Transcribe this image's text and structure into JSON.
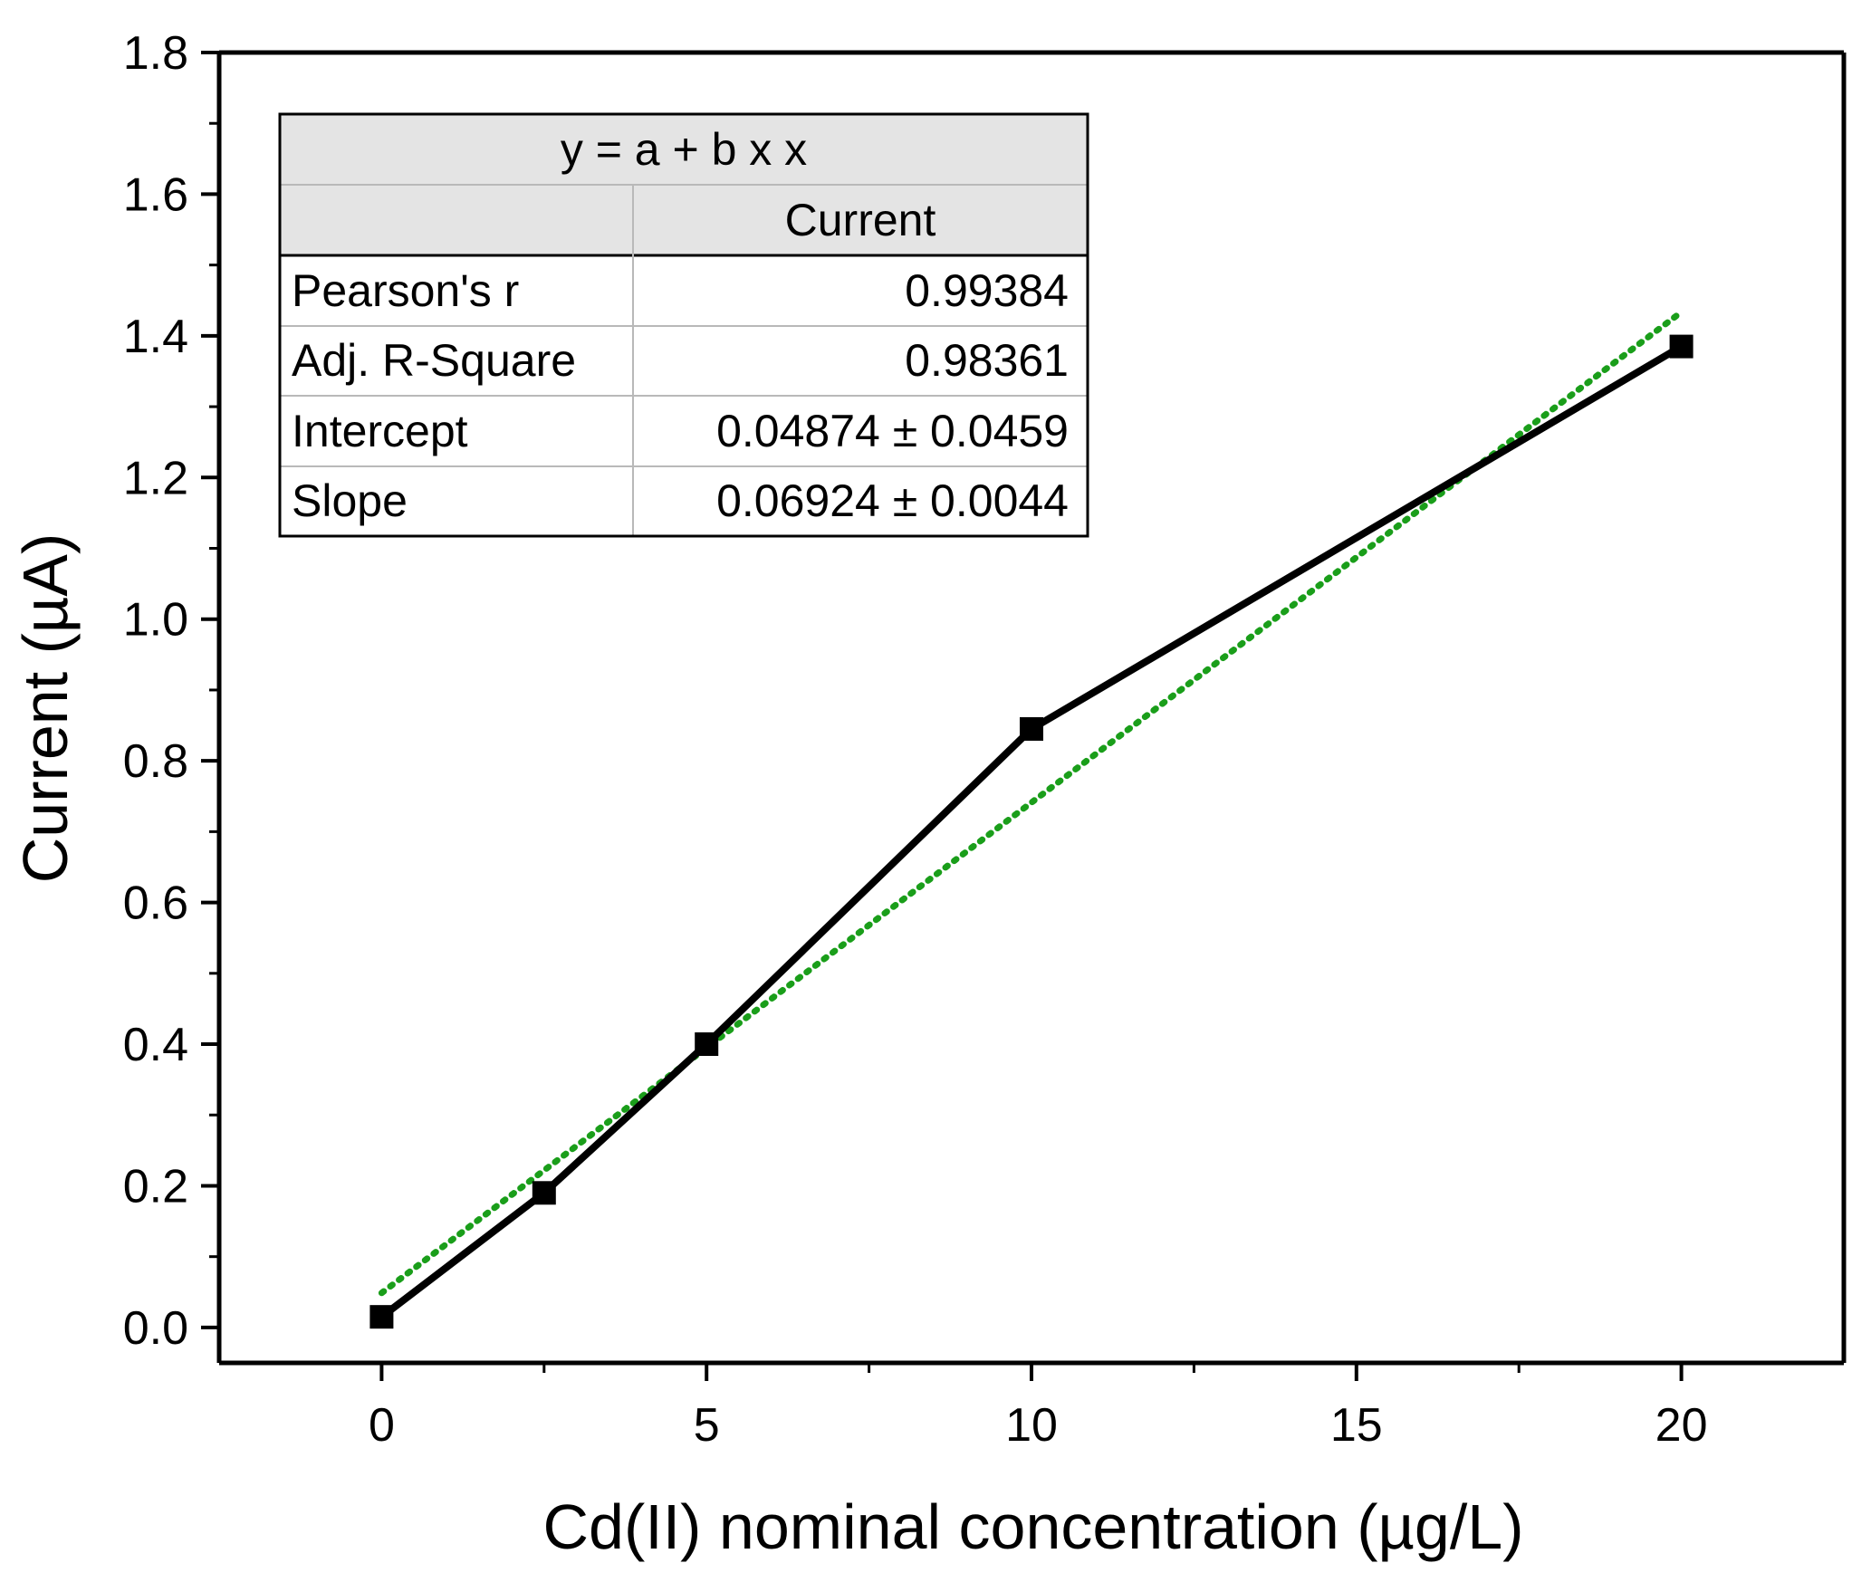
{
  "chart_data": {
    "type": "scatter",
    "xlabel": "Cd(II) nominal concentration (µg/L)",
    "ylabel": "Current (µA)",
    "xlim": [
      -2.5,
      22.5
    ],
    "ylim": [
      -0.05,
      1.8
    ],
    "x_ticks": [
      0,
      5,
      10,
      15,
      20
    ],
    "y_ticks": [
      0.0,
      0.2,
      0.4,
      0.6,
      0.8,
      1.0,
      1.2,
      1.4,
      1.6,
      1.8
    ],
    "x_tick_labels": [
      "0",
      "5",
      "10",
      "15",
      "20"
    ],
    "y_tick_labels": [
      "0.0",
      "0.2",
      "0.4",
      "0.6",
      "0.8",
      "1.0",
      "1.2",
      "1.4",
      "1.6",
      "1.8"
    ],
    "series": [
      {
        "name": "Current",
        "x": [
          0,
          2.5,
          5,
          10,
          20
        ],
        "y": [
          0.015,
          0.19,
          0.4,
          0.845,
          1.385
        ],
        "color": "#000000",
        "marker": "square",
        "line": "solid"
      }
    ],
    "fit": {
      "name": "Linear fit",
      "intercept": 0.04874,
      "slope": 0.06924,
      "x_range": [
        0,
        20
      ],
      "color": "#1a9e1a",
      "line": "dotted"
    },
    "stats_table": {
      "equation": "y = a + b x x",
      "column_header": "Current",
      "rows": [
        {
          "label": "Pearson's r",
          "value": "0.99384"
        },
        {
          "label": "Adj. R-Square",
          "value": "0.98361"
        },
        {
          "label": "Intercept",
          "value": "0.04874 ± 0.0459"
        },
        {
          "label": "Slope",
          "value": "0.06924 ± 0.0044"
        }
      ]
    }
  }
}
